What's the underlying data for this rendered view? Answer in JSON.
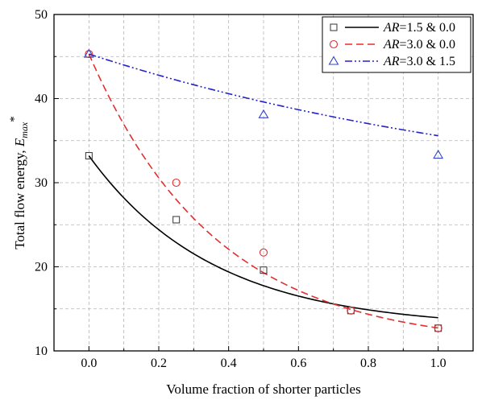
{
  "chart_data": {
    "type": "scatter",
    "xlabel": "Volume fraction of shorter particles",
    "ylabel_main": "Total flow energy, ",
    "ylabel_sym": "E",
    "ylabel_sub": "max",
    "ylabel_sup": "*",
    "xlim": [
      -0.1,
      1.1
    ],
    "ylim": [
      10,
      50
    ],
    "xticks": [
      "0.0",
      "0.2",
      "0.4",
      "0.6",
      "0.8",
      "1.0"
    ],
    "yticks": [
      "10",
      "20",
      "30",
      "40",
      "50"
    ],
    "xtick_values": [
      0.0,
      0.2,
      0.4,
      0.6,
      0.8,
      1.0
    ],
    "ytick_values": [
      10,
      20,
      30,
      40,
      50
    ],
    "grid": true,
    "legend_position": "top-right",
    "series": [
      {
        "name_prefix": "AR",
        "name_suffix": "=1.5 & 0.0",
        "marker": "square",
        "color": "#333333",
        "line_color": "#000000",
        "line_style": "solid",
        "points_x": [
          0.0,
          0.25,
          0.5,
          0.75,
          1.0
        ],
        "points_y": [
          33.2,
          25.6,
          19.6,
          14.8,
          12.7
        ],
        "fit_a": 12.7,
        "fit_b": 20.5,
        "fit_k": 2.8
      },
      {
        "name_prefix": "AR",
        "name_suffix": "=3.0 & 0.0",
        "marker": "circle",
        "color": "#e03030",
        "line_color": "#e03030",
        "line_style": "dashed",
        "points_x": [
          0.0,
          0.25,
          0.5,
          0.75,
          1.0
        ],
        "points_y": [
          45.3,
          30.0,
          21.7,
          14.8,
          12.7
        ],
        "fit_a": 10.5,
        "fit_b": 34.8,
        "fit_k": 2.75
      },
      {
        "name_prefix": "AR",
        "name_suffix": "=3.0 & 1.5",
        "marker": "triangle",
        "color": "#3344cc",
        "line_color": "#2222cc",
        "line_style": "dashdotdot",
        "points_x": [
          0.0,
          0.5,
          1.0
        ],
        "points_y": [
          45.3,
          38.1,
          33.3
        ],
        "fit_a": 26.0,
        "fit_b": 19.3,
        "fit_k": 0.7
      }
    ]
  }
}
